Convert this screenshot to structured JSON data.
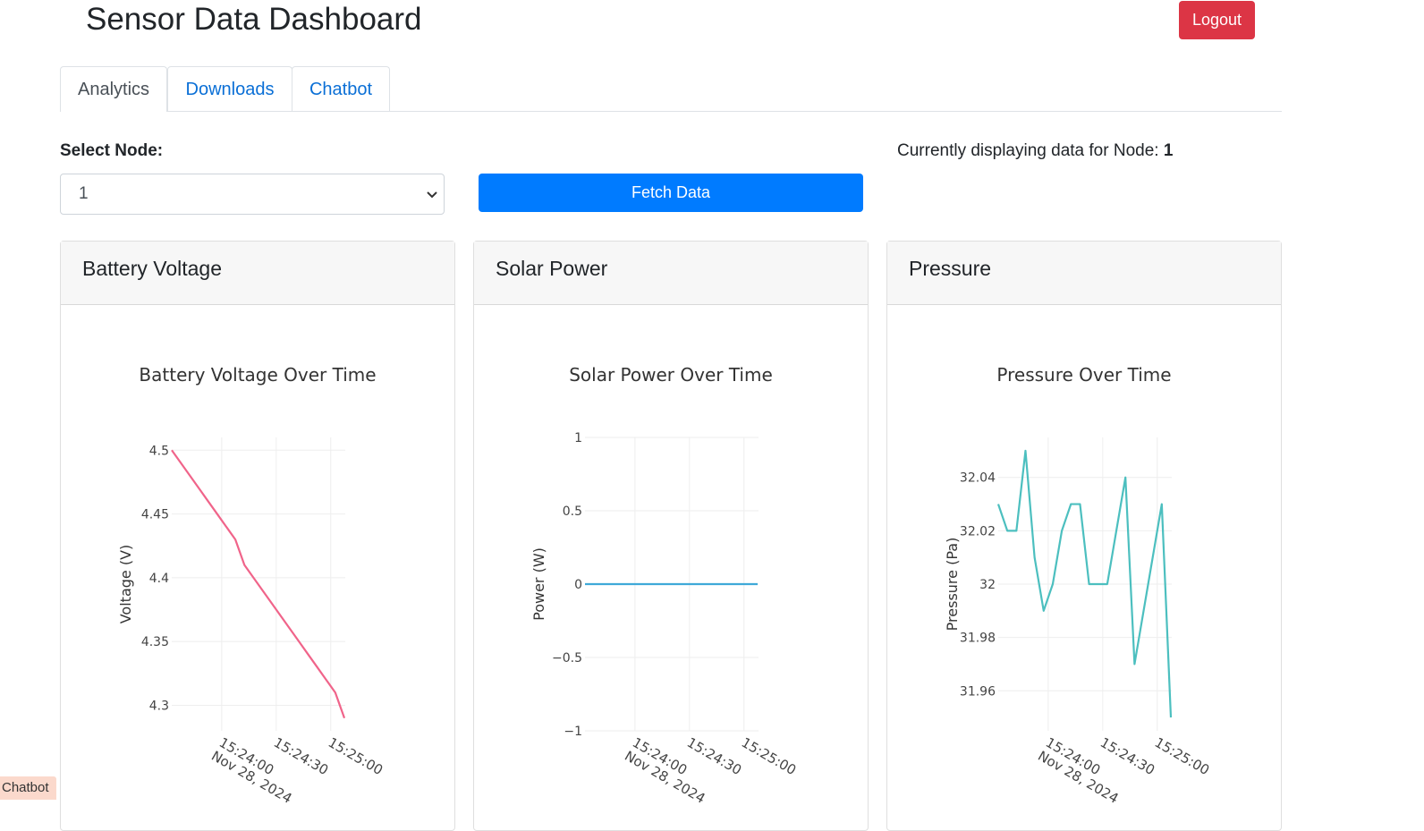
{
  "header": {
    "title": "Sensor Data Dashboard",
    "logout": "Logout"
  },
  "tabs": [
    "Analytics",
    "Downloads",
    "Chatbot"
  ],
  "controls": {
    "select_label": "Select Node:",
    "selected_node": "1",
    "fetch_button": "Fetch Data",
    "status_text": "Currently displaying data for Node:",
    "status_node": "1"
  },
  "cards": [
    {
      "title": "Battery Voltage"
    },
    {
      "title": "Solar Power"
    },
    {
      "title": "Pressure"
    }
  ],
  "chart_data": [
    {
      "type": "line",
      "title": "Battery Voltage Over Time",
      "y_label": "Voltage (V)",
      "x": [
        "2024-11-28 15:23:32.5",
        "2024-11-28 15:23:37.5",
        "2024-11-28 15:23:42.5",
        "2024-11-28 15:23:47.5",
        "2024-11-28 15:23:52.5",
        "2024-11-28 15:23:57.5",
        "2024-11-28 15:24:02.5",
        "2024-11-28 15:24:07.5",
        "2024-11-28 15:24:12.5",
        "2024-11-28 15:24:17.5",
        "2024-11-28 15:24:22.5",
        "2024-11-28 15:24:27.5",
        "2024-11-28 15:24:32.5",
        "2024-11-28 15:24:37.5",
        "2024-11-28 15:24:42.5",
        "2024-11-28 15:24:47.5",
        "2024-11-28 15:24:52.5",
        "2024-11-28 15:24:57.5",
        "2024-11-28 15:25:02.5",
        "2024-11-28 15:25:07.5"
      ],
      "values": [
        4.5,
        4.49,
        4.48,
        4.47,
        4.46,
        4.45,
        4.44,
        4.43,
        4.41,
        4.4,
        4.39,
        4.38,
        4.37,
        4.36,
        4.35,
        4.34,
        4.33,
        4.32,
        4.31,
        4.29
      ],
      "color": "#f0648a",
      "grid": true,
      "xlim": [
        "2024-11-28 15:23:32.5",
        "2024-11-28 15:25:07.5"
      ],
      "xticks": [
        {
          "value": "2024-11-28 15:24:00",
          "label": "15:24:00\nNov 28, 2024"
        },
        {
          "value": "2024-11-28 15:24:30",
          "label": "15:24:30"
        },
        {
          "value": "2024-11-28 15:25:00",
          "label": "15:25:00"
        }
      ],
      "ylim": [
        4.28,
        4.51
      ],
      "yticks": [
        4.3,
        4.35,
        4.4,
        4.45,
        4.5
      ]
    },
    {
      "type": "line",
      "title": "Solar Power Over Time",
      "y_label": "Power (W)",
      "x": [
        "2024-11-28 15:23:32.5",
        "2024-11-28 15:23:37.5",
        "2024-11-28 15:23:42.5",
        "2024-11-28 15:23:47.5",
        "2024-11-28 15:23:52.5",
        "2024-11-28 15:23:57.5",
        "2024-11-28 15:24:02.5",
        "2024-11-28 15:24:07.5",
        "2024-11-28 15:24:12.5",
        "2024-11-28 15:24:17.5",
        "2024-11-28 15:24:22.5",
        "2024-11-28 15:24:27.5",
        "2024-11-28 15:24:32.5",
        "2024-11-28 15:24:37.5",
        "2024-11-28 15:24:42.5",
        "2024-11-28 15:24:47.5",
        "2024-11-28 15:24:52.5",
        "2024-11-28 15:24:57.5",
        "2024-11-28 15:25:02.5",
        "2024-11-28 15:25:07.5"
      ],
      "values": [
        0,
        0,
        0,
        0,
        0,
        0,
        0,
        0,
        0,
        0,
        0,
        0,
        0,
        0,
        0,
        0,
        0,
        0,
        0,
        0
      ],
      "color": "#3fa9d8",
      "grid": true,
      "xlim": [
        "2024-11-28 15:23:32.5",
        "2024-11-28 15:25:07.5"
      ],
      "xticks": [
        {
          "value": "2024-11-28 15:24:00",
          "label": "15:24:00\nNov 28, 2024"
        },
        {
          "value": "2024-11-28 15:24:30",
          "label": "15:24:30"
        },
        {
          "value": "2024-11-28 15:25:00",
          "label": "15:25:00"
        }
      ],
      "ylim": [
        -1,
        1
      ],
      "yticks": [
        {
          "value": -1,
          "label": "−1"
        },
        {
          "value": -0.5,
          "label": "−0.5"
        },
        0,
        0.5,
        1
      ]
    },
    {
      "type": "line",
      "title": "Pressure Over Time",
      "y_label": "Pressure (Pa)",
      "x": [
        "2024-11-28 15:23:32.5",
        "2024-11-28 15:23:37.5",
        "2024-11-28 15:23:42.5",
        "2024-11-28 15:23:47.5",
        "2024-11-28 15:23:52.5",
        "2024-11-28 15:23:57.5",
        "2024-11-28 15:24:02.5",
        "2024-11-28 15:24:07.5",
        "2024-11-28 15:24:12.5",
        "2024-11-28 15:24:17.5",
        "2024-11-28 15:24:22.5",
        "2024-11-28 15:24:27.5",
        "2024-11-28 15:24:32.5",
        "2024-11-28 15:24:37.5",
        "2024-11-28 15:24:42.5",
        "2024-11-28 15:24:47.5",
        "2024-11-28 15:24:52.5",
        "2024-11-28 15:24:57.5",
        "2024-11-28 15:25:02.5",
        "2024-11-28 15:25:07.5"
      ],
      "values": [
        32.03,
        32.02,
        32.02,
        32.05,
        32.01,
        31.99,
        32.0,
        32.02,
        32.03,
        32.03,
        32.0,
        32.0,
        32.0,
        32.02,
        32.04,
        31.97,
        31.99,
        32.01,
        32.03,
        31.95
      ],
      "color": "#4cbfbf",
      "grid": true,
      "xlim": [
        "2024-11-28 15:23:32.5",
        "2024-11-28 15:25:07.5"
      ],
      "xticks": [
        {
          "value": "2024-11-28 15:24:00",
          "label": "15:24:00\nNov 28, 2024"
        },
        {
          "value": "2024-11-28 15:24:30",
          "label": "15:24:30"
        },
        {
          "value": "2024-11-28 15:25:00",
          "label": "15:25:00"
        }
      ],
      "ylim": [
        31.945,
        32.055
      ],
      "yticks": [
        31.96,
        31.98,
        32,
        32.02,
        32.04
      ]
    }
  ],
  "chatbot_badge": "Chatbot"
}
